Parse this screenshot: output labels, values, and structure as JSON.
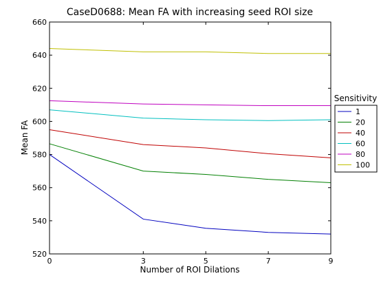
{
  "chart_data": {
    "type": "line",
    "title": "CaseD0688: Mean FA with increasing seed ROI size",
    "xlabel": "Number of ROI Dilations",
    "ylabel": "Mean FA",
    "x": [
      0,
      3,
      5,
      7,
      9
    ],
    "xticks": [
      0,
      3,
      5,
      7,
      9
    ],
    "xlim": [
      0,
      9
    ],
    "ylim": [
      520,
      660
    ],
    "yticks": [
      520,
      540,
      560,
      580,
      600,
      620,
      640,
      660
    ],
    "grid": false,
    "legend_title": "Sensitivity",
    "legend_position": "outside-right",
    "series": [
      {
        "name": "1",
        "color": "#0000bf",
        "values": [
          580,
          541,
          535.5,
          533,
          532
        ]
      },
      {
        "name": "20",
        "color": "#007f00",
        "values": [
          586.5,
          570,
          568,
          565,
          563
        ]
      },
      {
        "name": "40",
        "color": "#bf0000",
        "values": [
          595,
          586,
          584,
          580.5,
          578
        ]
      },
      {
        "name": "60",
        "color": "#00bfbf",
        "values": [
          607,
          602,
          601,
          600.5,
          601
        ]
      },
      {
        "name": "80",
        "color": "#bf00bf",
        "values": [
          612.5,
          610.5,
          610,
          609.5,
          609.5
        ]
      },
      {
        "name": "100",
        "color": "#bfbf00",
        "values": [
          644,
          642,
          642,
          641,
          641
        ]
      }
    ]
  }
}
